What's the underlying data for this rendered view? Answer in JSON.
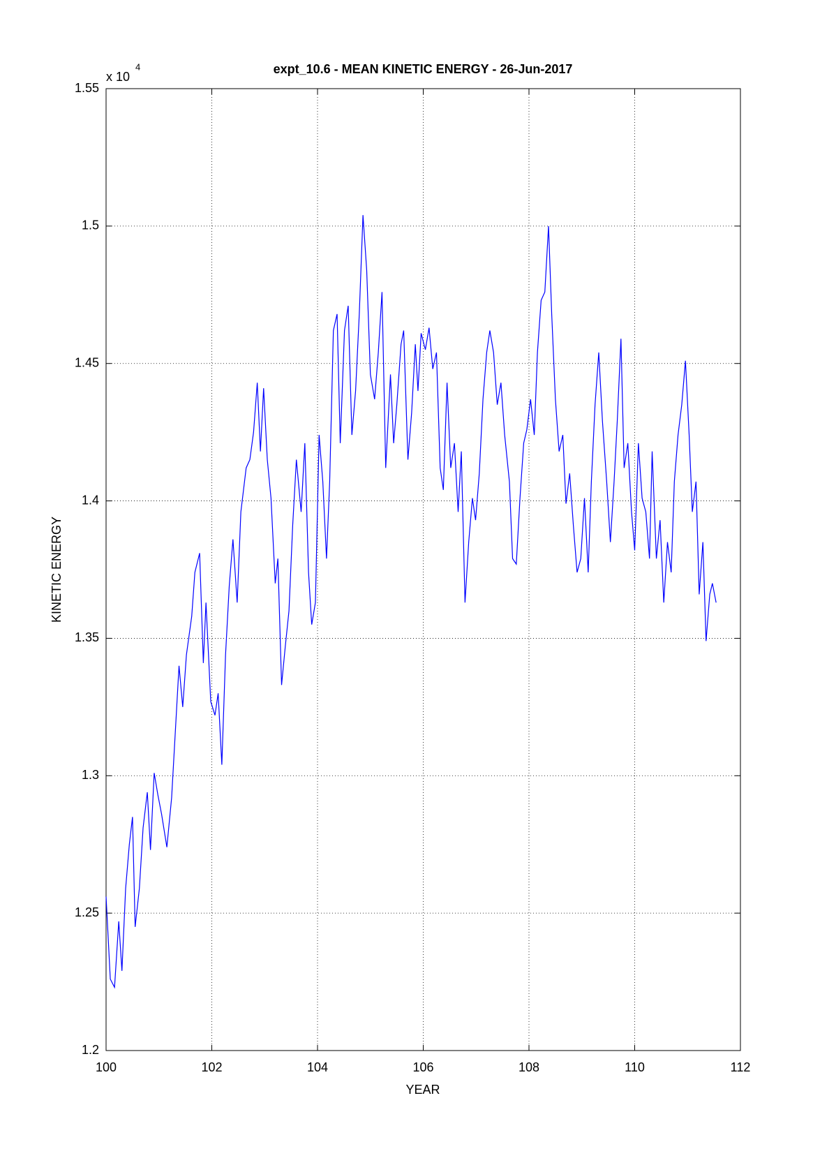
{
  "chart_data": {
    "type": "line",
    "title": "expt_10.6 - MEAN KINETIC ENERGY - 26-Jun-2017",
    "x_label": "YEAR",
    "y_label": "KINETIC ENERGY",
    "y_multiplier": "x 10",
    "y_multiplier_exponent": "4",
    "color": "#0000ff",
    "grid": true,
    "xlim": [
      100,
      112
    ],
    "xticks": [
      100,
      102,
      104,
      106,
      108,
      110,
      112
    ],
    "ylim": [
      1.2,
      1.55
    ],
    "yticks": [
      1.2,
      1.25,
      1.3,
      1.35,
      1.4,
      1.45,
      1.5,
      1.55
    ],
    "x": [
      100.0,
      100.08,
      100.16,
      100.24,
      100.3,
      100.37,
      100.44,
      100.5,
      100.55,
      100.63,
      100.7,
      100.78,
      100.84,
      100.91,
      100.98,
      101.05,
      101.15,
      101.24,
      101.31,
      101.38,
      101.45,
      101.52,
      101.62,
      101.68,
      101.77,
      101.84,
      101.89,
      101.98,
      102.06,
      102.12,
      102.19,
      102.26,
      102.33,
      102.4,
      102.48,
      102.55,
      102.65,
      102.72,
      102.79,
      102.86,
      102.92,
      102.98,
      103.05,
      103.12,
      103.2,
      103.25,
      103.32,
      103.39,
      103.46,
      103.53,
      103.6,
      103.69,
      103.76,
      103.83,
      103.89,
      103.96,
      104.03,
      104.1,
      104.17,
      104.23,
      104.3,
      104.37,
      104.43,
      104.51,
      104.58,
      104.65,
      104.72,
      104.79,
      104.86,
      104.93,
      105.0,
      105.08,
      105.15,
      105.22,
      105.29,
      105.38,
      105.44,
      105.5,
      105.58,
      105.63,
      105.71,
      105.78,
      105.85,
      105.9,
      105.96,
      106.04,
      106.11,
      106.18,
      106.25,
      106.32,
      106.38,
      106.45,
      106.52,
      106.59,
      106.66,
      106.72,
      106.79,
      106.86,
      106.93,
      106.99,
      107.06,
      107.13,
      107.2,
      107.26,
      107.33,
      107.4,
      107.47,
      107.54,
      107.63,
      107.69,
      107.76,
      107.83,
      107.9,
      107.96,
      108.03,
      108.1,
      108.16,
      108.23,
      108.3,
      108.37,
      108.43,
      108.5,
      108.57,
      108.64,
      108.7,
      108.77,
      108.84,
      108.91,
      108.98,
      109.05,
      109.12,
      109.18,
      109.25,
      109.32,
      109.39,
      109.47,
      109.54,
      109.61,
      109.67,
      109.74,
      109.8,
      109.87,
      109.94,
      110.0,
      110.07,
      110.14,
      110.21,
      110.28,
      110.33,
      110.41,
      110.48,
      110.55,
      110.62,
      110.69,
      110.75,
      110.82,
      110.89,
      110.96,
      111.03,
      111.09,
      111.16,
      111.22,
      111.29,
      111.35,
      111.42,
      111.47,
      111.54
    ],
    "values": [
      1.256,
      1.226,
      1.223,
      1.247,
      1.229,
      1.259,
      1.275,
      1.285,
      1.245,
      1.259,
      1.281,
      1.294,
      1.273,
      1.301,
      1.293,
      1.286,
      1.274,
      1.292,
      1.316,
      1.34,
      1.325,
      1.344,
      1.358,
      1.374,
      1.381,
      1.341,
      1.363,
      1.327,
      1.322,
      1.33,
      1.304,
      1.344,
      1.369,
      1.386,
      1.363,
      1.396,
      1.412,
      1.415,
      1.425,
      1.443,
      1.418,
      1.441,
      1.415,
      1.401,
      1.37,
      1.379,
      1.333,
      1.347,
      1.36,
      1.391,
      1.415,
      1.396,
      1.421,
      1.374,
      1.355,
      1.363,
      1.424,
      1.407,
      1.379,
      1.407,
      1.462,
      1.468,
      1.421,
      1.462,
      1.471,
      1.424,
      1.44,
      1.468,
      1.504,
      1.484,
      1.446,
      1.437,
      1.454,
      1.476,
      1.412,
      1.446,
      1.421,
      1.435,
      1.457,
      1.462,
      1.415,
      1.432,
      1.457,
      1.44,
      1.461,
      1.455,
      1.463,
      1.448,
      1.454,
      1.412,
      1.404,
      1.443,
      1.412,
      1.421,
      1.396,
      1.418,
      1.363,
      1.385,
      1.401,
      1.393,
      1.41,
      1.437,
      1.454,
      1.462,
      1.454,
      1.435,
      1.443,
      1.424,
      1.407,
      1.379,
      1.377,
      1.401,
      1.421,
      1.426,
      1.437,
      1.424,
      1.454,
      1.473,
      1.476,
      1.5,
      1.468,
      1.437,
      1.418,
      1.424,
      1.399,
      1.41,
      1.391,
      1.374,
      1.379,
      1.401,
      1.374,
      1.407,
      1.435,
      1.454,
      1.429,
      1.407,
      1.385,
      1.407,
      1.429,
      1.459,
      1.412,
      1.421,
      1.396,
      1.382,
      1.421,
      1.401,
      1.396,
      1.379,
      1.418,
      1.379,
      1.393,
      1.363,
      1.385,
      1.374,
      1.407,
      1.424,
      1.435,
      1.451,
      1.424,
      1.396,
      1.407,
      1.366,
      1.385,
      1.349,
      1.366,
      1.37,
      1.363
    ]
  }
}
